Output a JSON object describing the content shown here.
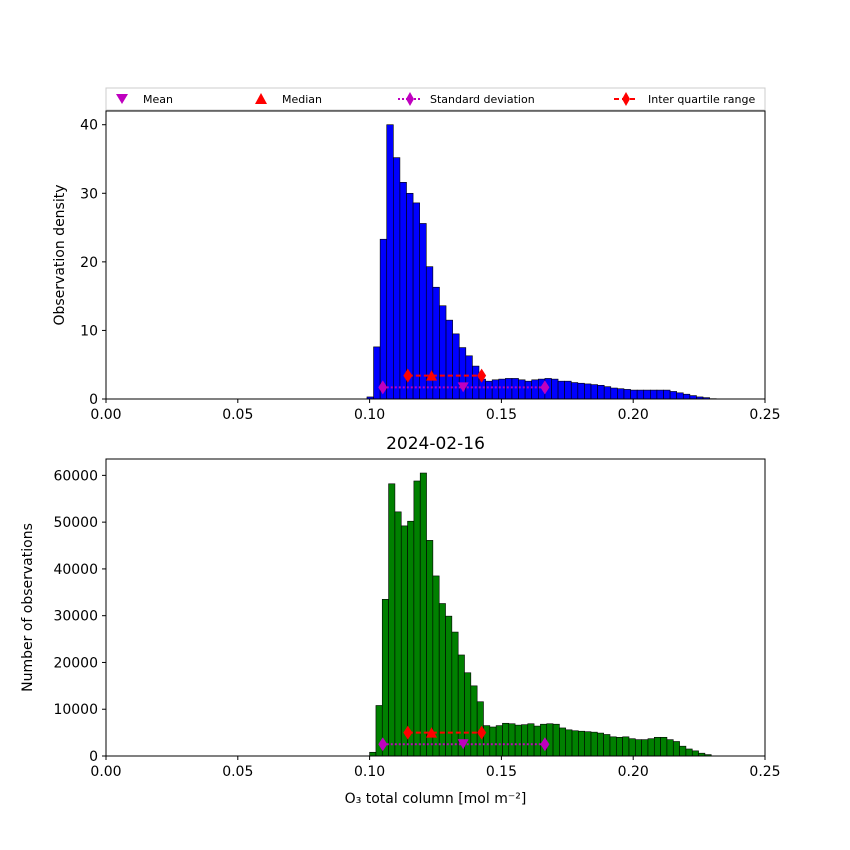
{
  "legend": {
    "mean": "Mean",
    "median": "Median",
    "std": "Standard deviation",
    "iqr": "Inter quartile range"
  },
  "colors": {
    "top_bars": "#0000ff",
    "bottom_bars": "#008000",
    "mean_marker": "#bf00bf",
    "median_marker": "#ff0000",
    "std_marker": "#bf00bf",
    "iqr_marker": "#ff0000"
  },
  "chart_data": [
    {
      "type": "bar",
      "title": "",
      "xlabel": "",
      "ylabel": "Observation density",
      "xlim": [
        0,
        0.25
      ],
      "ylim": [
        0,
        42
      ],
      "xticks": [
        "0.00",
        "0.05",
        "0.10",
        "0.15",
        "0.20",
        "0.25"
      ],
      "yticks": [
        0,
        10,
        20,
        30,
        40
      ],
      "bin_start": 0.099,
      "bin_width": 0.0025,
      "values": [
        0.3,
        7.6,
        23.3,
        40.0,
        35.2,
        31.6,
        30.0,
        28.6,
        25.6,
        19.3,
        16.3,
        13.6,
        11.5,
        9.5,
        7.5,
        6.3,
        4.8,
        2.9,
        2.6,
        2.8,
        2.9,
        3.0,
        3.0,
        2.8,
        2.6,
        2.8,
        2.9,
        3.0,
        2.9,
        2.6,
        2.6,
        2.4,
        2.3,
        2.2,
        2.1,
        2.0,
        1.8,
        1.6,
        1.5,
        1.4,
        1.3,
        1.3,
        1.3,
        1.3,
        1.3,
        1.3,
        1.1,
        0.9,
        0.7,
        0.5,
        0.3,
        0.2,
        0.05
      ],
      "stats": {
        "mean": {
          "x": 0.1355,
          "y": 1.7
        },
        "median": {
          "x": 0.1235,
          "y": 3.4
        },
        "std": {
          "x": [
            0.105,
            0.1665
          ],
          "y": 1.7
        },
        "iqr": {
          "x": [
            0.1145,
            0.1425
          ],
          "y": 3.4
        }
      }
    },
    {
      "type": "bar",
      "title": "2024-02-16",
      "xlabel": "O₃ total column [mol m⁻²]",
      "ylabel": "Number of observations",
      "xlim": [
        0,
        0.25
      ],
      "ylim": [
        0,
        63500
      ],
      "xticks": [
        "0.00",
        "0.05",
        "0.10",
        "0.15",
        "0.20",
        "0.25"
      ],
      "yticks": [
        0,
        10000,
        20000,
        30000,
        40000,
        50000,
        60000
      ],
      "bin_start": 0.1,
      "bin_width": 0.0024,
      "values": [
        800,
        10800,
        33500,
        58200,
        52200,
        49200,
        50200,
        58800,
        60500,
        46100,
        38500,
        32600,
        29900,
        26500,
        21600,
        17800,
        15000,
        11600,
        6500,
        6200,
        6500,
        7000,
        6900,
        6600,
        6700,
        6900,
        6400,
        6800,
        6900,
        6800,
        6000,
        5600,
        5400,
        5300,
        5200,
        5100,
        4900,
        4600,
        4100,
        4000,
        4100,
        3700,
        3500,
        3500,
        3700,
        4000,
        4000,
        3500,
        3100,
        2100,
        1500,
        1100,
        600,
        300
      ],
      "stats": {
        "mean": {
          "x": 0.1355,
          "y": 2500
        },
        "median": {
          "x": 0.1235,
          "y": 5000
        },
        "std": {
          "x": [
            0.105,
            0.1665
          ],
          "y": 2500
        },
        "iqr": {
          "x": [
            0.1145,
            0.1425
          ],
          "y": 5000
        }
      }
    }
  ]
}
